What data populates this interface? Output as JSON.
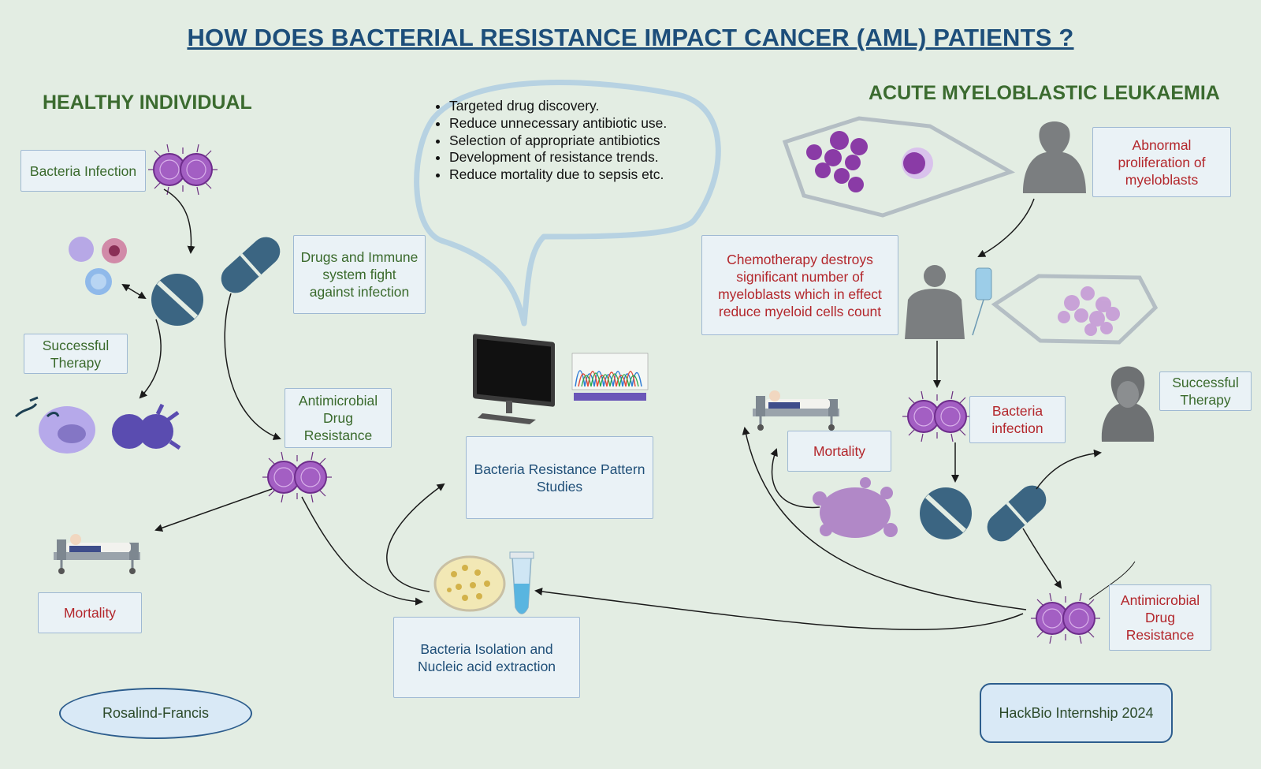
{
  "title": "HOW DOES BACTERIAL RESISTANCE IMPACT CANCER (AML) PATIENTS ?",
  "left": {
    "heading": "HEALTHY INDIVIDUAL",
    "bacteria_infection": "Bacteria Infection",
    "drugs_immune": "Drugs and Immune system fight against infection",
    "successful_therapy": "Successful Therapy",
    "antimicrobial_resistance": "Antimicrobial Drug Resistance",
    "mortality": "Mortality"
  },
  "center": {
    "bullets": [
      "Targeted drug discovery.",
      "Reduce unnecessary antibiotic use.",
      "Selection of appropriate antibiotics",
      "Development of resistance trends.",
      "Reduce mortality due to sepsis etc."
    ],
    "pattern_studies": "Bacteria Resistance Pattern Studies",
    "isolation": "Bacteria Isolation and Nucleic acid extraction"
  },
  "right": {
    "heading": "ACUTE MYELOBLASTIC LEUKAEMIA",
    "abnormal": "Abnormal proliferation of myeloblasts",
    "chemo": "Chemotherapy destroys significant number of myeloblasts which in effect reduce myeloid cells count",
    "bacteria_infection": "Bacteria infection",
    "mortality": "Mortality",
    "successful_therapy": "Successful Therapy",
    "antimicrobial_resistance": "Antimicrobial Drug Resistance"
  },
  "footer": {
    "team": "Rosalind-Francis",
    "program": "HackBio Internship 2024"
  },
  "colors": {
    "background": "#e3ede3",
    "title": "#1d4e7a",
    "heading_green": "#3b6b2f",
    "text_red": "#b3262b",
    "pill": "#3b6582",
    "bacteria": "#9b59b6"
  }
}
